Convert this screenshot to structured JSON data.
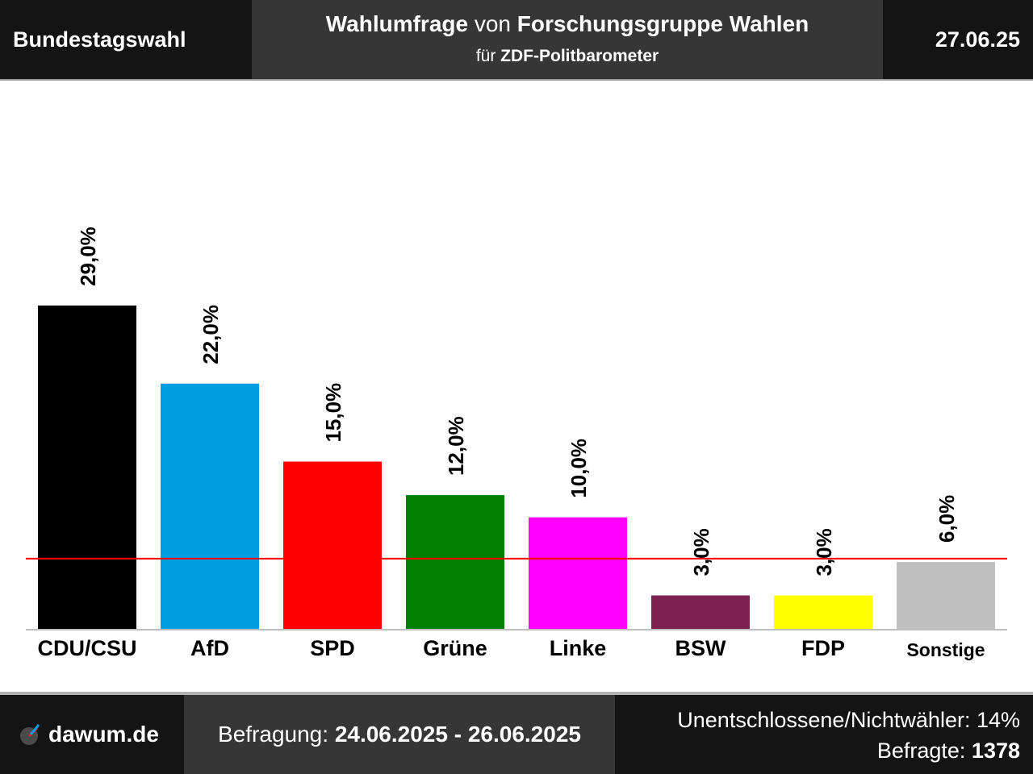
{
  "header": {
    "left": "Bundestagswahl",
    "title_pollster_prefix": "Wahlumfrage",
    "title_von": "von",
    "title_pollster": "Forschungsgruppe Wahlen",
    "sub_prefix": "für",
    "sub_client": "ZDF-Politbarometer",
    "date": "27.06.25"
  },
  "footer": {
    "logo_text": "dawum.de",
    "survey_label": "Befragung:",
    "survey_period": "24.06.2025 - 26.06.2025",
    "undecided_text": "Unentschlossene/Nichtwähler: 14%",
    "respondents_label": "Befragte:",
    "respondents_value": "1378"
  },
  "chart_data": {
    "type": "bar",
    "title": "",
    "xlabel": "",
    "ylabel": "",
    "categories": [
      "CDU/CSU",
      "AfD",
      "SPD",
      "Grüne",
      "Linke",
      "BSW",
      "FDP",
      "Sonstige"
    ],
    "values": [
      29.0,
      22.0,
      15.0,
      12.0,
      10.0,
      3.0,
      3.0,
      6.0
    ],
    "value_labels": [
      "29,0%",
      "22,0%",
      "15,0%",
      "12,0%",
      "10,0%",
      "3,0%",
      "3,0%",
      "6,0%"
    ],
    "colors": [
      "#000000",
      "#009ee0",
      "#ff0000",
      "#008000",
      "#ff00ff",
      "#7d2250",
      "#ffff00",
      "#c0c0c0"
    ],
    "threshold": 5,
    "threshold_color": "#ff0000",
    "ylim": [
      0,
      34
    ],
    "grid": false,
    "legend": "none"
  }
}
